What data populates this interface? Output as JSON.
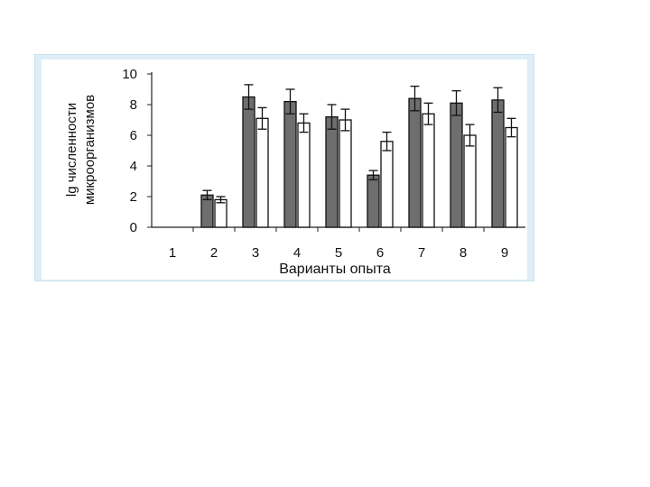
{
  "chart_data": {
    "type": "bar",
    "title": "",
    "xlabel": "Варианты опыта",
    "ylabel_lines": [
      "lg численности",
      "микроорганизмов"
    ],
    "categories": [
      "1",
      "2",
      "3",
      "4",
      "5",
      "6",
      "7",
      "8",
      "9"
    ],
    "ylim": [
      0,
      10
    ],
    "yticks": [
      "0",
      "2",
      "4",
      "6",
      "8",
      "10"
    ],
    "grid": false,
    "legend": "none",
    "series": [
      {
        "color": "#6e6e6e",
        "values": [
          null,
          2.1,
          8.5,
          8.2,
          7.2,
          3.4,
          8.4,
          8.1,
          8.3
        ],
        "errors": [
          null,
          0.3,
          0.8,
          0.8,
          0.8,
          0.3,
          0.8,
          0.8,
          0.8
        ]
      },
      {
        "color": "#ffffff",
        "values": [
          null,
          1.8,
          7.1,
          6.8,
          7.0,
          5.6,
          7.4,
          6.0,
          6.5
        ],
        "errors": [
          null,
          0.2,
          0.7,
          0.6,
          0.7,
          0.6,
          0.7,
          0.7,
          0.6
        ]
      }
    ]
  }
}
